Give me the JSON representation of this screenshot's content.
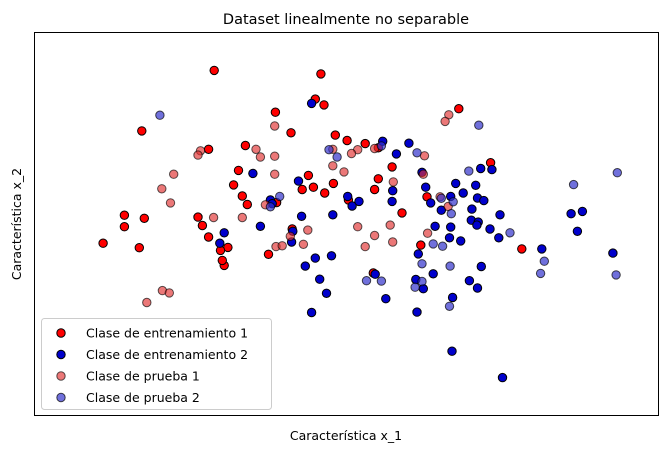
{
  "chart_data": {
    "type": "scatter",
    "title": "Dataset linealmente no separable",
    "xlabel": "Característica x_1",
    "ylabel": "Característica x_2",
    "xlim": [
      0,
      100
    ],
    "ylim": [
      0,
      100
    ],
    "x_ticks_shown": false,
    "y_ticks_shown": false,
    "grid": false,
    "legend_position": "lower-left",
    "series": [
      {
        "name": "Clase de entrenamiento 1",
        "color": "#ff0000",
        "alpha": 1.0,
        "points": [
          [
            28.8,
            90.1
          ],
          [
            45.9,
            89.2
          ],
          [
            45.0,
            82.6
          ],
          [
            46.4,
            81.1
          ],
          [
            38.6,
            79.2
          ],
          [
            68.0,
            80.1
          ],
          [
            17.2,
            74.3
          ],
          [
            27.9,
            69.5
          ],
          [
            33.8,
            70.5
          ],
          [
            41.1,
            73.8
          ],
          [
            48.2,
            73.2
          ],
          [
            50.1,
            71.8
          ],
          [
            55.1,
            69.9
          ],
          [
            53.0,
            71.0
          ],
          [
            57.3,
            64.9
          ],
          [
            73.1,
            66.0
          ],
          [
            32.7,
            64.0
          ],
          [
            31.9,
            60.2
          ],
          [
            43.9,
            62.7
          ],
          [
            44.7,
            59.6
          ],
          [
            42.9,
            59.0
          ],
          [
            47.9,
            60.6
          ],
          [
            46.5,
            58.1
          ],
          [
            54.5,
            59.0
          ],
          [
            55.1,
            61.8
          ],
          [
            50.3,
            56.3
          ],
          [
            62.9,
            57.1
          ],
          [
            17.6,
            51.5
          ],
          [
            26.2,
            51.8
          ],
          [
            33.3,
            57.3
          ],
          [
            34.1,
            55.1
          ],
          [
            38.8,
            55.6
          ],
          [
            14.4,
            52.3
          ],
          [
            26.9,
            49.6
          ],
          [
            31.0,
            43.9
          ],
          [
            16.8,
            43.8
          ],
          [
            11.0,
            45.0
          ],
          [
            58.9,
            52.9
          ],
          [
            14.4,
            49.3
          ],
          [
            30.4,
            39.2
          ],
          [
            27.9,
            46.6
          ],
          [
            29.8,
            43.1
          ],
          [
            30.1,
            40.5
          ],
          [
            37.5,
            42.1
          ],
          [
            78.1,
            43.5
          ],
          [
            61.9,
            44.5
          ],
          [
            54.3,
            37.2
          ],
          [
            41.3,
            48.7
          ]
        ]
      },
      {
        "name": "Clase de entrenamiento 2",
        "color": "#0000cc",
        "alpha": 1.0,
        "points": [
          [
            44.4,
            81.5
          ],
          [
            55.8,
            71.6
          ],
          [
            60.0,
            71.1
          ],
          [
            58.0,
            68.3
          ],
          [
            62.1,
            63.5
          ],
          [
            71.5,
            64.5
          ],
          [
            73.3,
            64.2
          ],
          [
            70.7,
            60.1
          ],
          [
            68.7,
            58.1
          ],
          [
            66.7,
            57.2
          ],
          [
            71.0,
            56.8
          ],
          [
            72.0,
            56.1
          ],
          [
            35.0,
            63.2
          ],
          [
            37.8,
            56.3
          ],
          [
            38.1,
            55.3
          ],
          [
            42.3,
            61.2
          ],
          [
            42.8,
            52.0
          ],
          [
            47.8,
            52.4
          ],
          [
            50.2,
            57.2
          ],
          [
            50.9,
            54.7
          ],
          [
            52.0,
            55.9
          ],
          [
            57.4,
            58.7
          ],
          [
            57.3,
            55.9
          ],
          [
            62.7,
            59.6
          ],
          [
            67.5,
            60.6
          ],
          [
            63.5,
            55.5
          ],
          [
            65.2,
            53.6
          ],
          [
            64.2,
            49.4
          ],
          [
            66.7,
            49.2
          ],
          [
            68.3,
            45.6
          ],
          [
            70.1,
            53.9
          ],
          [
            70.0,
            51.0
          ],
          [
            71.1,
            50.5
          ],
          [
            74.6,
            52.4
          ],
          [
            70.9,
            49.7
          ],
          [
            73.0,
            48.7
          ],
          [
            74.4,
            46.4
          ],
          [
            86.0,
            52.7
          ],
          [
            87.8,
            53.3
          ],
          [
            87.0,
            48.1
          ],
          [
            81.3,
            43.5
          ],
          [
            30.4,
            47.7
          ],
          [
            29.7,
            45.0
          ],
          [
            36.2,
            49.4
          ],
          [
            41.4,
            48.1
          ],
          [
            41.2,
            45.3
          ],
          [
            45.0,
            41.1
          ],
          [
            43.4,
            39.0
          ],
          [
            45.7,
            35.6
          ],
          [
            47.6,
            41.7
          ],
          [
            54.6,
            36.9
          ],
          [
            66.5,
            46.4
          ],
          [
            69.7,
            35.2
          ],
          [
            71.6,
            38.9
          ],
          [
            67.0,
            30.8
          ],
          [
            71.0,
            33.3
          ],
          [
            61.5,
            42.2
          ],
          [
            61.1,
            35.5
          ],
          [
            62.3,
            33.1
          ],
          [
            44.4,
            26.9
          ],
          [
            61.3,
            27.0
          ],
          [
            56.3,
            30.5
          ],
          [
            92.7,
            42.4
          ],
          [
            66.9,
            16.8
          ],
          [
            75.0,
            9.9
          ],
          [
            46.8,
            31.9
          ],
          [
            63.9,
            37.0
          ]
        ]
      },
      {
        "name": "Clase de prueba 1",
        "color": "#e03030",
        "alpha": 0.65,
        "points": [
          [
            38.5,
            75.6
          ],
          [
            35.5,
            69.5
          ],
          [
            36.2,
            67.5
          ],
          [
            38.5,
            67.7
          ],
          [
            47.8,
            69.5
          ],
          [
            51.8,
            69.4
          ],
          [
            50.8,
            68.4
          ],
          [
            54.5,
            69.7
          ],
          [
            62.5,
            67.8
          ],
          [
            66.4,
            78.5
          ],
          [
            65.8,
            76.8
          ],
          [
            26.6,
            69.1
          ],
          [
            62.3,
            63.0
          ],
          [
            66.3,
            54.6
          ],
          [
            57.5,
            61.0
          ],
          [
            65.0,
            57.1
          ],
          [
            47.8,
            65.2
          ],
          [
            26.2,
            68.0
          ],
          [
            22.3,
            63.0
          ],
          [
            20.4,
            59.2
          ],
          [
            37.0,
            55.0
          ],
          [
            49.6,
            63.6
          ],
          [
            38.5,
            63.0
          ],
          [
            21.8,
            55.5
          ],
          [
            28.7,
            51.7
          ],
          [
            51.8,
            49.3
          ],
          [
            57.4,
            45.3
          ],
          [
            41.0,
            46.8
          ],
          [
            43.8,
            48.4
          ],
          [
            33.3,
            51.7
          ],
          [
            38.7,
            44.1
          ],
          [
            20.5,
            32.6
          ],
          [
            21.6,
            32.0
          ],
          [
            18.0,
            29.5
          ],
          [
            39.7,
            44.3
          ],
          [
            57.0,
            49.7
          ],
          [
            54.5,
            47.0
          ],
          [
            43.1,
            44.7
          ],
          [
            63.0,
            47.6
          ],
          [
            53.0,
            44.1
          ]
        ]
      },
      {
        "name": "Clase de prueba 2",
        "color": "#3333cc",
        "alpha": 0.7,
        "points": [
          [
            20.1,
            78.4
          ],
          [
            55.6,
            70.4
          ],
          [
            48.5,
            67.5
          ],
          [
            47.2,
            69.4
          ],
          [
            71.2,
            75.8
          ],
          [
            61.3,
            68.6
          ],
          [
            66.8,
            52.7
          ],
          [
            67.1,
            55.8
          ],
          [
            65.2,
            56.7
          ],
          [
            69.6,
            63.8
          ],
          [
            76.2,
            47.7
          ],
          [
            81.1,
            37.1
          ],
          [
            86.4,
            60.3
          ],
          [
            93.4,
            63.4
          ],
          [
            37.8,
            54.5
          ],
          [
            63.9,
            44.8
          ],
          [
            65.4,
            44.2
          ],
          [
            62.1,
            39.6
          ],
          [
            61.0,
            33.5
          ],
          [
            62.1,
            35.0
          ],
          [
            66.6,
            39.0
          ],
          [
            53.2,
            35.2
          ],
          [
            55.6,
            35.1
          ],
          [
            66.5,
            28.5
          ],
          [
            93.2,
            36.7
          ],
          [
            39.3,
            57.2
          ],
          [
            81.7,
            40.3
          ]
        ]
      }
    ]
  },
  "legend": {
    "items": [
      {
        "label": "Clase de entrenamiento 1",
        "color": "#ff0000",
        "alpha": 1.0
      },
      {
        "label": "Clase de entrenamiento 2",
        "color": "#0000cc",
        "alpha": 1.0
      },
      {
        "label": "Clase de prueba 1",
        "color": "#e03030",
        "alpha": 0.65
      },
      {
        "label": "Clase de prueba 2",
        "color": "#3333cc",
        "alpha": 0.7
      }
    ]
  }
}
